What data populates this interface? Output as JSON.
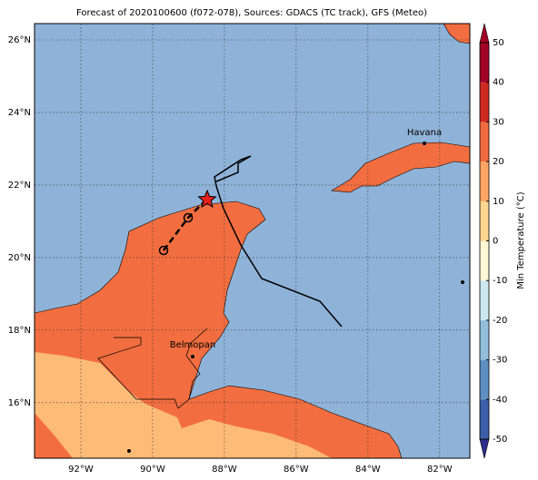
{
  "title": "Forecast of 2020100600 (f072-078), Sources: GDACS (TC track), GFS (Meteo)",
  "map": {
    "xlim": [
      -93.29,
      -81.16
    ],
    "ylim": [
      14.47,
      26.45
    ],
    "xticks": [
      {
        "value": -92,
        "label": "92°W"
      },
      {
        "value": -90,
        "label": "90°W"
      },
      {
        "value": -88,
        "label": "88°W"
      },
      {
        "value": -86,
        "label": "86°W"
      },
      {
        "value": -84,
        "label": "84°W"
      },
      {
        "value": -82,
        "label": "82°W"
      }
    ],
    "yticks": [
      {
        "value": 16,
        "label": "16°N"
      },
      {
        "value": 18,
        "label": "18°N"
      },
      {
        "value": 20,
        "label": "20°N"
      },
      {
        "value": 22,
        "label": "22°N"
      },
      {
        "value": 24,
        "label": "24°N"
      },
      {
        "value": 26,
        "label": "26°N"
      }
    ],
    "places": [
      "Havana",
      "Belmopan"
    ]
  },
  "colorbar": {
    "label": "Min Temperature (°C)",
    "ticks": [
      -50,
      -40,
      -30,
      -20,
      -10,
      0,
      10,
      20,
      30,
      40,
      50
    ],
    "colors": [
      "#2c2d8c",
      "#3c5ea8",
      "#5d8fc2",
      "#92bfdb",
      "#cbe7ef",
      "#fdf7d4",
      "#fdd690",
      "#fca463",
      "#f06b3f",
      "#cf2a22",
      "#a20026"
    ]
  }
}
